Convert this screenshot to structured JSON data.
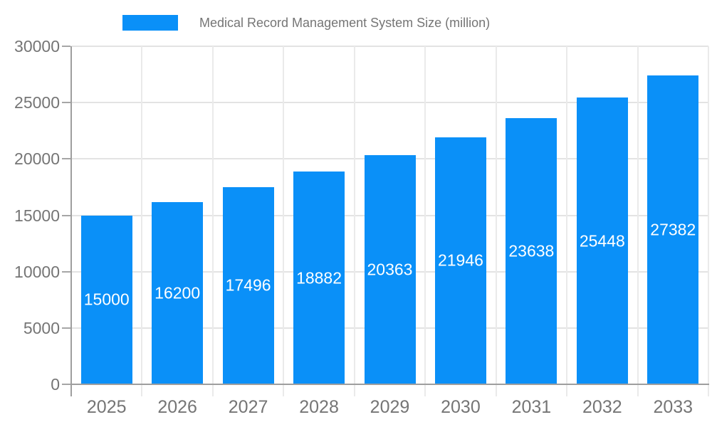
{
  "chart_data": {
    "type": "bar",
    "series_name": "Medical Record Management System Size (million)",
    "categories": [
      "2025",
      "2026",
      "2027",
      "2028",
      "2029",
      "2030",
      "2031",
      "2032",
      "2033"
    ],
    "values": [
      15000,
      16200,
      17496,
      18882,
      20363,
      21946,
      23638,
      25448,
      27382
    ],
    "bar_value_labels": [
      "15000",
      "16200",
      "17496",
      "18882",
      "20363",
      "21946",
      "23638",
      "25448",
      "27382"
    ],
    "xlabel": "",
    "ylabel": "",
    "ylim": [
      0,
      30000
    ],
    "yticks": [
      0,
      5000,
      10000,
      15000,
      20000,
      25000,
      30000
    ],
    "ytick_labels": [
      "0",
      "5000",
      "10000",
      "15000",
      "20000",
      "25000",
      "30000"
    ],
    "legend_position": "top",
    "grid": true
  },
  "styles": {
    "background": "#ffffff",
    "bar_color": "#0a90f8",
    "bar_label_color": "#ffffff",
    "grid_horizontal": "#e3e3e3",
    "grid_vertical": "#eaeaea",
    "axis_line": "#9e9e9e",
    "tick_y": "#a6a6a6",
    "tick_x": "#dcdcdc",
    "axis_text": "#757575",
    "legend_text": "#757575"
  }
}
